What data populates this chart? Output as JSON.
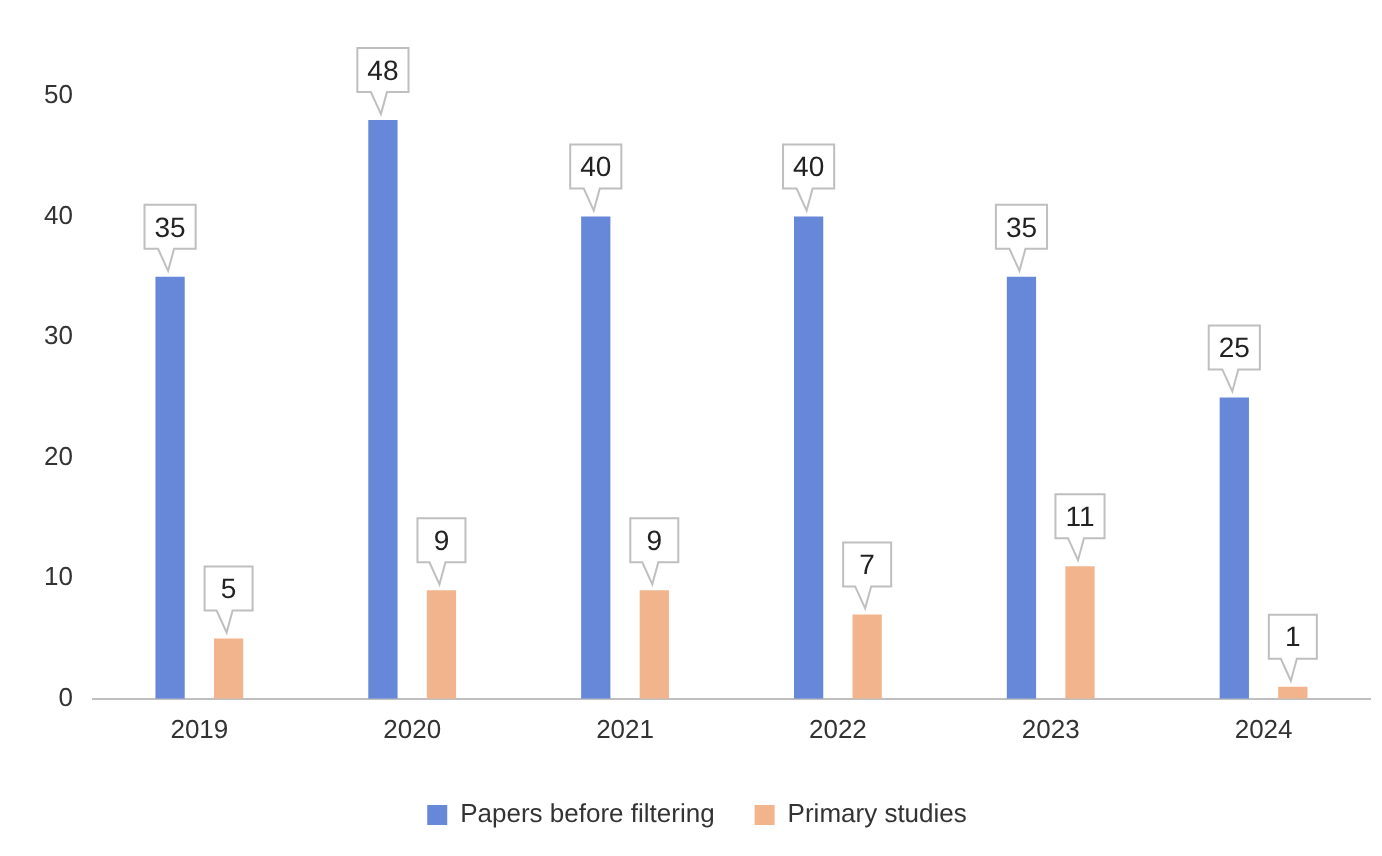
{
  "chart_data": {
    "type": "bar",
    "categories": [
      "2019",
      "2020",
      "2021",
      "2022",
      "2023",
      "2024"
    ],
    "series": [
      {
        "name": "Papers before filtering",
        "color": "#6787d8",
        "values": [
          35,
          48,
          40,
          40,
          35,
          25
        ]
      },
      {
        "name": "Primary studies",
        "color": "#f2b48c",
        "values": [
          5,
          9,
          9,
          7,
          11,
          1
        ]
      }
    ],
    "ylim": [
      0,
      50
    ],
    "yticks": [
      0,
      10,
      20,
      30,
      40,
      50
    ],
    "grid": false,
    "legend": "bottom",
    "data_labels": true
  }
}
